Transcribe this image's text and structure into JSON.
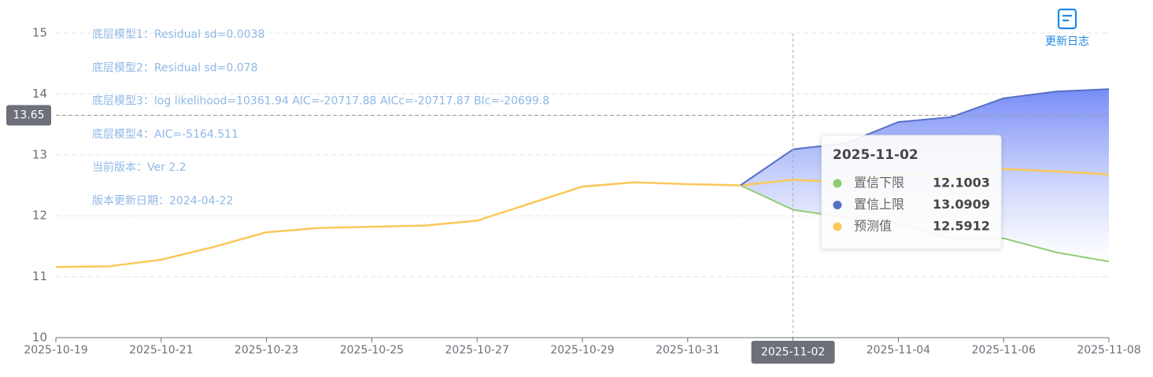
{
  "chart_data": {
    "type": "line",
    "annotations": [
      "底层模型1：Residual sd=0.0038",
      "底层模型2：Residual sd=0.078",
      "底层模型3：log likelihood=10361.94 AIC=-20717.88 AICc=-20717.87 BIc=-20699.8",
      "底层模型4：AIC=-5164.511",
      "当前版本：Ver 2.2",
      "版本更新日期：2024-04-22"
    ],
    "x": [
      "2025-10-19",
      "2025-10-20",
      "2025-10-21",
      "2025-10-22",
      "2025-10-23",
      "2025-10-24",
      "2025-10-25",
      "2025-10-26",
      "2025-10-27",
      "2025-10-28",
      "2025-10-29",
      "2025-10-30",
      "2025-10-31",
      "2025-11-01",
      "2025-11-02",
      "2025-11-03",
      "2025-11-04",
      "2025-11-05",
      "2025-11-06",
      "2025-11-07",
      "2025-11-08"
    ],
    "series": [
      {
        "name": "置信下限",
        "color": "#91cc75",
        "values": [
          null,
          null,
          null,
          null,
          null,
          null,
          null,
          null,
          null,
          null,
          null,
          null,
          null,
          12.5,
          12.1003,
          11.97,
          11.87,
          11.63,
          11.63,
          11.4,
          11.25
        ]
      },
      {
        "name": "置信上限",
        "color": "#5470c6",
        "values": [
          null,
          null,
          null,
          null,
          null,
          null,
          null,
          null,
          null,
          null,
          null,
          null,
          null,
          12.5,
          13.0909,
          13.19,
          13.54,
          13.62,
          13.93,
          14.04,
          14.08
        ]
      },
      {
        "name": "预测值",
        "color": "#fac858",
        "values": [
          11.16,
          11.17,
          11.28,
          11.49,
          11.73,
          11.8,
          11.82,
          11.84,
          11.92,
          12.2,
          12.48,
          12.55,
          12.52,
          12.5,
          12.5912,
          12.55,
          12.69,
          12.63,
          12.77,
          12.73,
          12.68
        ]
      }
    ],
    "band_color": "#6f86f5",
    "xlim": [
      "2025-10-19",
      "2025-11-08"
    ],
    "xticks": [
      "2025-10-19",
      "2025-10-21",
      "2025-10-23",
      "2025-10-25",
      "2025-10-27",
      "2025-10-29",
      "2025-10-31",
      "2025-11-02",
      "2025-11-04",
      "2025-11-06",
      "2025-11-08"
    ],
    "ylim": [
      10,
      15
    ],
    "yticks": [
      10,
      11,
      12,
      13,
      14,
      15
    ],
    "grid": true,
    "crosshair": {
      "x": "2025-11-02",
      "y": 13.65
    },
    "tooltip": {
      "title": "2025-11-02",
      "index": 14
    }
  },
  "toolbar": {
    "label": "更新日志"
  }
}
